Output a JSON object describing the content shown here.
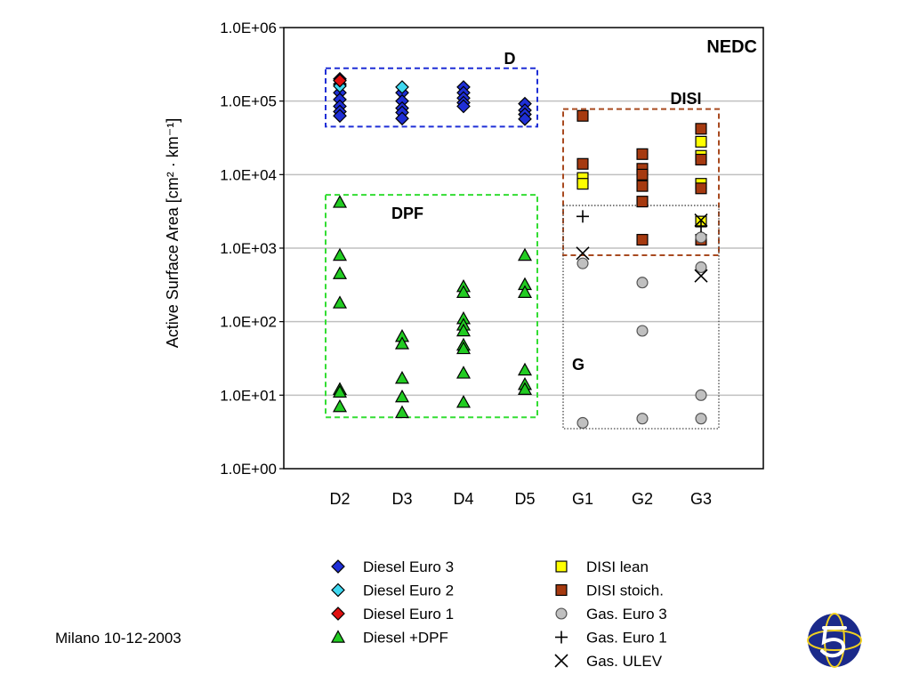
{
  "footer": {
    "text": "Milano 10-12-2003"
  },
  "chart_data": {
    "type": "scatter",
    "title": "NEDC",
    "ylabel": "Active Surface Area [cm² · km⁻¹]",
    "yscale": "log",
    "ylim": [
      1,
      1000000
    ],
    "yticks": [
      "1.0E+00",
      "1.0E+01",
      "1.0E+02",
      "1.0E+03",
      "1.0E+04",
      "1.0E+05",
      "1.0E+06"
    ],
    "categories": [
      "D2",
      "D3",
      "D4",
      "D5",
      "G1",
      "G2",
      "G3"
    ],
    "grid": "horizontal",
    "legend_position": "bottom",
    "series": [
      {
        "name": "Diesel Euro 3",
        "marker": "diamond",
        "color": "#1f2fd6",
        "points": [
          [
            "D2",
            200000
          ],
          [
            "D2",
            170000
          ],
          [
            "D2",
            130000
          ],
          [
            "D2",
            105000
          ],
          [
            "D2",
            85000
          ],
          [
            "D2",
            72000
          ],
          [
            "D2",
            63000
          ],
          [
            "D3",
            130000
          ],
          [
            "D3",
            100000
          ],
          [
            "D3",
            80000
          ],
          [
            "D3",
            70000
          ],
          [
            "D3",
            58000
          ],
          [
            "D4",
            155000
          ],
          [
            "D4",
            130000
          ],
          [
            "D4",
            110000
          ],
          [
            "D4",
            95000
          ],
          [
            "D4",
            85000
          ],
          [
            "D5",
            92000
          ],
          [
            "D5",
            75000
          ],
          [
            "D5",
            66000
          ],
          [
            "D5",
            57000
          ]
        ]
      },
      {
        "name": "Diesel Euro 2",
        "marker": "diamond",
        "color": "#3fd8f0",
        "points": [
          [
            "D2",
            160000
          ],
          [
            "D3",
            155000
          ]
        ]
      },
      {
        "name": "Diesel Euro 1",
        "marker": "diamond",
        "color": "#e01010",
        "points": [
          [
            "D2",
            190000
          ]
        ]
      },
      {
        "name": "Diesel +DPF",
        "marker": "triangle",
        "color": "#22cc22",
        "points": [
          [
            "D2",
            4200
          ],
          [
            "D2",
            800
          ],
          [
            "D2",
            450
          ],
          [
            "D2",
            180
          ],
          [
            "D2",
            12
          ],
          [
            "D2",
            11
          ],
          [
            "D2",
            7
          ],
          [
            "D3",
            63
          ],
          [
            "D3",
            50
          ],
          [
            "D3",
            17
          ],
          [
            "D3",
            9.5
          ],
          [
            "D3",
            5.8
          ],
          [
            "D4",
            300
          ],
          [
            "D4",
            250
          ],
          [
            "D4",
            110
          ],
          [
            "D4",
            90
          ],
          [
            "D4",
            75
          ],
          [
            "D4",
            48
          ],
          [
            "D4",
            43
          ],
          [
            "D4",
            20
          ],
          [
            "D4",
            8
          ],
          [
            "D5",
            800
          ],
          [
            "D5",
            320
          ],
          [
            "D5",
            250
          ],
          [
            "D5",
            22
          ],
          [
            "D5",
            14
          ],
          [
            "D5",
            12
          ]
        ]
      },
      {
        "name": "DISI lean",
        "marker": "square",
        "color": "#ffff00",
        "points": [
          [
            "G1",
            9000
          ],
          [
            "G1",
            7500
          ],
          [
            "G3",
            28000
          ],
          [
            "G3",
            18000
          ],
          [
            "G3",
            7500
          ],
          [
            "G3",
            2300
          ]
        ]
      },
      {
        "name": "DISI stoich.",
        "marker": "square",
        "color": "#a63a10",
        "points": [
          [
            "G1",
            63000
          ],
          [
            "G1",
            14000
          ],
          [
            "G2",
            19000
          ],
          [
            "G2",
            12000
          ],
          [
            "G2",
            10000
          ],
          [
            "G2",
            7000
          ],
          [
            "G2",
            4300
          ],
          [
            "G2",
            1300
          ],
          [
            "G3",
            42000
          ],
          [
            "G3",
            16000
          ],
          [
            "G3",
            6500
          ],
          [
            "G3",
            1300
          ]
        ]
      },
      {
        "name": "Gas. Euro 3",
        "marker": "circle",
        "color": "#c0c0c0",
        "points": [
          [
            "G1",
            620
          ],
          [
            "G1",
            4.2
          ],
          [
            "G2",
            340
          ],
          [
            "G2",
            75
          ],
          [
            "G2",
            4.8
          ],
          [
            "G3",
            1400
          ],
          [
            "G3",
            550
          ],
          [
            "G3",
            10
          ],
          [
            "G3",
            4.8
          ]
        ]
      },
      {
        "name": "Gas. Euro 1",
        "marker": "plus",
        "color": "#000000",
        "points": [
          [
            "G1",
            2700
          ],
          [
            "G3",
            2000
          ]
        ]
      },
      {
        "name": "Gas. ULEV",
        "marker": "x",
        "color": "#000000",
        "points": [
          [
            "G1",
            850
          ],
          [
            "G3",
            2400
          ],
          [
            "G3",
            420
          ]
        ]
      }
    ],
    "annotations": [
      {
        "label": "D",
        "style": "dashed",
        "color": "#1f2fd6",
        "x_from": "D2",
        "x_to": "D5",
        "y_range": [
          45000,
          280000
        ]
      },
      {
        "label": "DPF",
        "style": "dashed",
        "color": "#33dd33",
        "x_from": "D2",
        "x_to": "D5",
        "y_range": [
          5,
          5300
        ]
      },
      {
        "label": "DISI",
        "style": "dashed",
        "color": "#a84a20",
        "x_from": "G1",
        "x_to": "G3",
        "y_range": [
          800,
          78000
        ]
      },
      {
        "label": "G",
        "style": "dotted",
        "color": "#444444",
        "x_from": "G1",
        "x_to": "G3",
        "y_range": [
          3.5,
          3800
        ]
      }
    ]
  }
}
